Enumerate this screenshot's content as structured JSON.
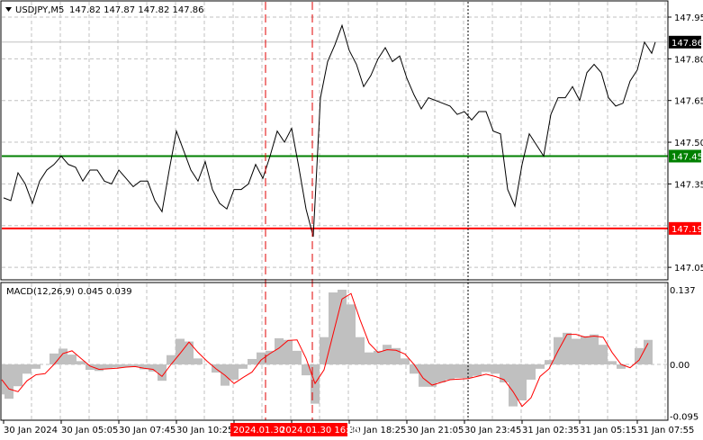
{
  "header": {
    "symbol": "USDJPY,M5",
    "ohlc": "147.82 147.87 147.82 147.86",
    "menu_icon": "triangle-down-icon"
  },
  "macd_header": "MACD(12,26,9) 0.045 0.039",
  "colors": {
    "price_line": "#000000",
    "support_line": "#008000",
    "resistance_line": "#ff0000",
    "histogram": "#c0c0c0",
    "signal": "#ff0000",
    "grid": "#c0c0c0",
    "marker_line": "#e00000"
  },
  "chart_data": [
    {
      "type": "line",
      "title": "USDJPY,M5",
      "timeframe": "M5",
      "ylim": [
        147.0,
        148.0
      ],
      "y_ticks": [
        "147.95",
        "147.80",
        "147.65",
        "147.50",
        "147.35",
        "147.05"
      ],
      "x_ticks": [
        "30 Jan 2024",
        "30 Jan 05:05",
        "30 Jan 07:45",
        "30 Jan 10:25",
        "",
        "",
        "30 Jan 18:25",
        "30 Jan 21:05",
        "30 Jan 23:45",
        "31 Jan 02:35",
        "31 Jan 05:15",
        "31 Jan 07:55"
      ],
      "grid": true,
      "close": [
        147.3,
        147.29,
        147.39,
        147.35,
        147.28,
        147.36,
        147.4,
        147.42,
        147.45,
        147.42,
        147.41,
        147.36,
        147.4,
        147.4,
        147.36,
        147.35,
        147.4,
        147.37,
        147.34,
        147.36,
        147.36,
        147.29,
        147.25,
        147.4,
        147.54,
        147.47,
        147.4,
        147.36,
        147.43,
        147.33,
        147.28,
        147.26,
        147.33,
        147.33,
        147.35,
        147.42,
        147.37,
        147.45,
        147.54,
        147.5,
        147.55,
        147.41,
        147.26,
        147.16,
        147.66,
        147.79,
        147.85,
        147.92,
        147.83,
        147.78,
        147.7,
        147.74,
        147.8,
        147.84,
        147.79,
        147.81,
        147.73,
        147.67,
        147.62,
        147.66,
        147.65,
        147.64,
        147.63,
        147.6,
        147.61,
        147.58,
        147.61,
        147.61,
        147.54,
        147.53,
        147.33,
        147.27,
        147.42,
        147.53,
        147.49,
        147.45,
        147.6,
        147.66,
        147.66,
        147.7,
        147.65,
        147.75,
        147.78,
        147.75,
        147.66,
        147.63,
        147.64,
        147.72,
        147.76,
        147.86,
        147.82,
        147.86
      ],
      "levels": [
        {
          "label": "147.86",
          "value": 147.86,
          "kind": "current-price"
        },
        {
          "label": "147.45",
          "value": 147.45,
          "kind": "green-line"
        },
        {
          "label": "147.19",
          "value": 147.19,
          "kind": "red-line"
        }
      ],
      "marker_labels": [
        "2024.01.30",
        "2024.01.30 16:45"
      ]
    },
    {
      "type": "bar",
      "title": "MACD(12,26,9) 0.045 0.039",
      "ylim": [
        -0.095,
        0.137
      ],
      "y_ticks": [
        "0.137",
        "0.00",
        "-0.095"
      ],
      "histogram": [
        -0.055,
        -0.063,
        -0.04,
        -0.017,
        -0.008,
        0,
        0.02,
        0.029,
        0.018,
        0.006,
        -0.01,
        -0.012,
        -0.008,
        -0.006,
        -0.005,
        -0.004,
        -0.009,
        -0.013,
        -0.03,
        0.017,
        0.047,
        0.042,
        0.011,
        0,
        -0.015,
        -0.039,
        -0.028,
        -0.008,
        0.01,
        0.022,
        0.025,
        0.048,
        0.045,
        0.025,
        -0.02,
        -0.072,
        0.05,
        0.132,
        0.137,
        0.11,
        0.05,
        0.022,
        0.025,
        0.036,
        0.03,
        0.011,
        -0.017,
        -0.041,
        -0.041,
        -0.033,
        -0.028,
        -0.025,
        -0.025,
        -0.021,
        -0.014,
        -0.017,
        -0.033,
        -0.077,
        -0.066,
        -0.028,
        -0.008,
        0.008,
        0.05,
        0.058,
        0.047,
        0.052,
        0.055,
        0.036,
        0.006,
        -0.008,
        0,
        0.03,
        0.045
      ],
      "signal": [
        -0.028,
        -0.045,
        -0.05,
        -0.03,
        -0.019,
        -0.017,
        0,
        0.02,
        0.025,
        0.011,
        -0.003,
        -0.009,
        -0.008,
        -0.007,
        -0.005,
        -0.004,
        -0.007,
        -0.009,
        -0.022,
        0,
        0.02,
        0.041,
        0.022,
        0.006,
        -0.008,
        -0.02,
        -0.035,
        -0.024,
        -0.014,
        0.008,
        0.02,
        0.03,
        0.044,
        0.045,
        0.011,
        -0.035,
        -0.01,
        0.055,
        0.12,
        0.13,
        0.082,
        0.039,
        0.022,
        0.027,
        0.026,
        0.019,
        0,
        -0.025,
        -0.038,
        -0.033,
        -0.028,
        -0.027,
        -0.026,
        -0.022,
        -0.018,
        -0.022,
        -0.028,
        -0.05,
        -0.077,
        -0.061,
        -0.022,
        -0.008,
        0.025,
        0.055,
        0.055,
        0.05,
        0.052,
        0.05,
        0.022,
        0,
        -0.006,
        0.008,
        0.039
      ]
    }
  ]
}
